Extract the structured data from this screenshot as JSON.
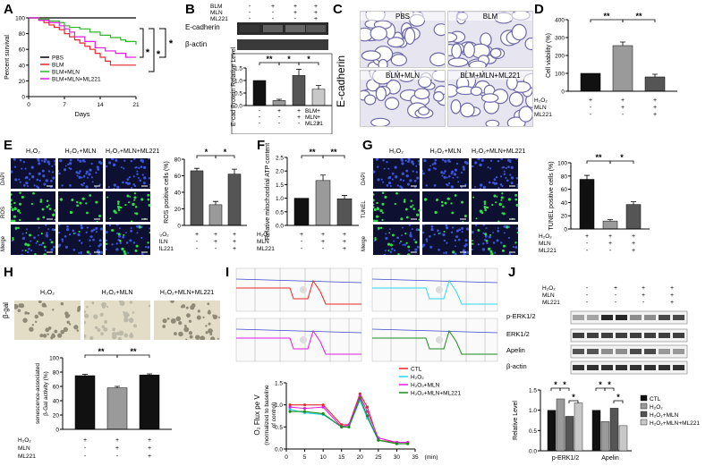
{
  "panels": {
    "A": "A",
    "B": "B",
    "C": "C",
    "D": "D",
    "E": "E",
    "F": "F",
    "G": "G",
    "H": "H",
    "I": "I",
    "J": "J"
  },
  "colors": {
    "pbs": "#000000",
    "blm": "#e8262b",
    "blm_mln": "#2db52b",
    "blm_mln_ml221": "#e01ce0",
    "bar_black": "#111111",
    "bar_gray": "#9a9a9a",
    "bar_dark": "#555555",
    "bar_light": "#c8c8c8",
    "fluo_bg": "#0d1030",
    "cell_blue": "#3a55d8",
    "ros_green": "#2de04a",
    "tissue": "#e7e5f0"
  },
  "star1": "*",
  "star2": "**",
  "plus": "+",
  "minus": "-",
  "h2o2": "H₂O₂",
  "mln": "MLN",
  "ml221": "ML221",
  "blm": "BLM",
  "labels_rows_blm": [
    "BLM",
    "MLN",
    "ML221"
  ],
  "labels_rows_h2o2": [
    "H₂O₂",
    "MLN",
    "ML221"
  ],
  "signs_blm": [
    [
      "-",
      "+",
      "+",
      "+"
    ],
    [
      "-",
      "-",
      "+",
      "+"
    ],
    [
      "-",
      "-",
      "-",
      "+"
    ]
  ],
  "signs_h2o2_3": [
    [
      "+",
      "+",
      "+"
    ],
    [
      "-",
      "+",
      "+"
    ],
    [
      "-",
      "-",
      "+"
    ]
  ],
  "A": {
    "ylabel": "Percent survival",
    "xlabel": "Days",
    "chart_data": {
      "type": "line",
      "xlabel": "Days",
      "ylabel": "Percent survival",
      "xlim": [
        0,
        21
      ],
      "ylim": [
        0,
        100
      ],
      "xticks": [
        0,
        7,
        14,
        21
      ],
      "yticks": [
        0,
        20,
        40,
        60,
        80,
        100
      ],
      "series": [
        {
          "name": "PBS",
          "x": [
            0,
            21
          ],
          "y": [
            100,
            100
          ]
        },
        {
          "name": "BLM",
          "x": [
            0,
            2,
            3,
            4,
            5,
            6,
            7,
            8,
            9,
            10,
            11,
            12,
            13,
            14,
            15,
            16,
            17,
            18,
            19,
            20,
            21
          ],
          "y": [
            100,
            97,
            94,
            91,
            88,
            85,
            80,
            76,
            72,
            68,
            64,
            60,
            55,
            50,
            45,
            40,
            40,
            40,
            40,
            40,
            40
          ]
        },
        {
          "name": "BLM+MLN",
          "x": [
            0,
            2,
            4,
            6,
            7,
            8,
            10,
            12,
            14,
            16,
            18,
            19,
            21
          ],
          "y": [
            100,
            98,
            96,
            94,
            90,
            88,
            86,
            82,
            78,
            75,
            72,
            70,
            66
          ]
        },
        {
          "name": "BLM+MLN+ML221",
          "x": [
            0,
            2,
            4,
            6,
            7,
            8,
            9,
            11,
            13,
            15,
            17,
            19,
            21
          ],
          "y": [
            100,
            97,
            94,
            90,
            86,
            82,
            76,
            70,
            62,
            58,
            55,
            50,
            50
          ]
        }
      ]
    }
  },
  "B": {
    "blot_labels": [
      "E-cadherin",
      "β-actin"
    ],
    "ylabel": "E-cad Protein Relative Level",
    "chart_data": {
      "type": "bar",
      "categories": [
        "PBS",
        "BLM",
        "BLM+MLN",
        "BLM+MLN+ML221"
      ],
      "values": [
        1.0,
        0.2,
        1.2,
        0.65
      ],
      "errors": [
        0.0,
        0.05,
        0.25,
        0.15
      ],
      "ylim": [
        0,
        1.5
      ],
      "yticks": [
        0.0,
        0.5,
        1.0,
        1.5
      ],
      "ylabel": "E-cad Protein Relative Level"
    }
  },
  "C": {
    "side_label": "E-cadherin",
    "tiles": [
      "PBS",
      "BLM",
      "BLM+MLN",
      "BLM+MLN+ML221"
    ]
  },
  "D": {
    "ylabel": "Cell viability (%)",
    "chart_data": {
      "type": "bar",
      "categories": [
        "H2O2",
        "H2O2+MLN",
        "H2O2+MLN+ML221"
      ],
      "values": [
        100,
        255,
        80
      ],
      "errors": [
        0,
        20,
        15
      ],
      "ylim": [
        0,
        400
      ],
      "yticks": [
        0,
        100,
        200,
        300,
        400
      ],
      "ylabel": "Cell viability (%)"
    }
  },
  "E": {
    "cols": [
      "H₂O₂",
      "H₂O₂+MLN",
      "H₂O₂+MLN+ML221"
    ],
    "rows": [
      "DAPI",
      "ROS",
      "Merge"
    ],
    "ylabel": "ROS positive cells (%)",
    "chart_data": {
      "type": "bar",
      "categories": [
        "H2O2",
        "H2O2+MLN",
        "H2O2+MLN+ML221"
      ],
      "values": [
        66,
        25,
        62
      ],
      "errors": [
        3,
        4,
        6
      ],
      "ylim": [
        0,
        80
      ],
      "yticks": [
        0,
        20,
        40,
        60,
        80
      ],
      "ylabel": "ROS positive cells (%)"
    }
  },
  "F": {
    "ylabel": "Relative mitochondrial ATP content",
    "chart_data": {
      "type": "bar",
      "categories": [
        "H2O2",
        "H2O2+MLN",
        "H2O2+MLN+ML221"
      ],
      "values": [
        1.0,
        1.65,
        0.98
      ],
      "errors": [
        0,
        0.2,
        0.12
      ],
      "ylim": [
        0,
        2.5
      ],
      "yticks": [
        0.0,
        0.5,
        1.0,
        1.5,
        2.0,
        2.5
      ],
      "ylabel": "Relative mitochondrial ATP content"
    }
  },
  "G": {
    "cols": [
      "H₂O₂",
      "H₂O₂+MLN",
      "H₂O₂+MLN+ML221"
    ],
    "rows": [
      "DAPI",
      "TUNEL",
      "Merge"
    ],
    "ylabel": "TUNEL positive cells (%)",
    "chart_data": {
      "type": "bar",
      "categories": [
        "H2O2",
        "H2O2+MLN",
        "H2O2+MLN+ML221"
      ],
      "values": [
        75,
        12,
        37
      ],
      "errors": [
        6,
        2,
        4
      ],
      "ylim": [
        0,
        100
      ],
      "yticks": [
        0,
        20,
        40,
        60,
        80,
        100
      ],
      "ylabel": "TUNEL positive cells (%)"
    }
  },
  "H": {
    "cols": [
      "H₂O₂",
      "H₂O₂+MLN",
      "H₂O₂+MLN+ML221"
    ],
    "side_label": "β-gal",
    "ylabel": "senescence-associated β-Gal activity (%)",
    "chart_data": {
      "type": "bar",
      "categories": [
        "H2O2",
        "H2O2+MLN",
        "H2O2+MLN+ML221"
      ],
      "values": [
        75,
        58,
        76
      ],
      "errors": [
        2,
        2,
        1.5
      ],
      "ylim": [
        0,
        100
      ],
      "yticks": [
        0,
        20,
        40,
        60,
        80,
        100
      ],
      "ylabel": "senescence-associated β-Gal activity (%)"
    }
  },
  "I": {
    "legend": [
      "CTL",
      "H₂O₂",
      "H₂O₂+MLN",
      "H₂O₂+MLN+ML221"
    ],
    "ylabel": "O₂ Flux pe V (normalized to baseline of control)",
    "xunit": "(min)",
    "chart_data": {
      "type": "line",
      "ylabel": "O2 Flux pe V (normalized to baseline of control)",
      "xlabel": "(min)",
      "xlim": [
        0,
        35
      ],
      "ylim": [
        0,
        1.5
      ],
      "xticks": [
        0,
        5,
        10,
        15,
        20,
        25,
        30,
        35
      ],
      "yticks": [
        0.0,
        0.5,
        1.0,
        1.5
      ],
      "series": [
        {
          "name": "CTL",
          "x": [
            1,
            5,
            10,
            15,
            17,
            20,
            22,
            25,
            30,
            33
          ],
          "y": [
            1.0,
            1.0,
            1.0,
            0.55,
            0.55,
            1.25,
            0.95,
            0.2,
            0.15,
            0.15
          ]
        },
        {
          "name": "H2O2",
          "x": [
            1,
            5,
            10,
            15,
            17,
            20,
            22,
            25,
            30,
            33
          ],
          "y": [
            0.9,
            0.82,
            0.78,
            0.5,
            0.5,
            1.1,
            0.7,
            0.2,
            0.12,
            0.12
          ]
        },
        {
          "name": "H2O2+MLN",
          "x": [
            1,
            5,
            10,
            15,
            17,
            20,
            22,
            25,
            30,
            33
          ],
          "y": [
            0.95,
            0.92,
            0.95,
            0.5,
            0.55,
            1.2,
            0.85,
            0.25,
            0.15,
            0.15
          ]
        },
        {
          "name": "H2O2+MLN+ML221",
          "x": [
            1,
            5,
            10,
            15,
            17,
            20,
            22,
            25,
            30,
            33
          ],
          "y": [
            0.85,
            0.85,
            0.8,
            0.5,
            0.5,
            1.15,
            0.75,
            0.2,
            0.12,
            0.12
          ]
        }
      ]
    }
  },
  "J": {
    "blot_labels": [
      "p-ERK1/2",
      "ERK1/2",
      "Apelin",
      "β-actin"
    ],
    "legend": [
      "CTL",
      "H₂O₂",
      "H₂O₂+MLN",
      "H₂O₂+MLN+ML221"
    ],
    "ylabel": "Relative Level",
    "chart_data": {
      "type": "bar",
      "categories": [
        "p-ERK1/2",
        "Apelin"
      ],
      "ylim": [
        0,
        1.5
      ],
      "yticks": [
        0.0,
        0.5,
        1.0,
        1.5
      ],
      "ylabel": "Relative Level",
      "series": [
        {
          "name": "CTL",
          "values": [
            1.0,
            1.0
          ]
        },
        {
          "name": "H2O2",
          "values": [
            1.28,
            0.72
          ]
        },
        {
          "name": "H2O2+MLN",
          "values": [
            0.85,
            1.05
          ]
        },
        {
          "name": "H2O2+MLN+ML221",
          "values": [
            1.18,
            0.62
          ]
        }
      ]
    }
  }
}
